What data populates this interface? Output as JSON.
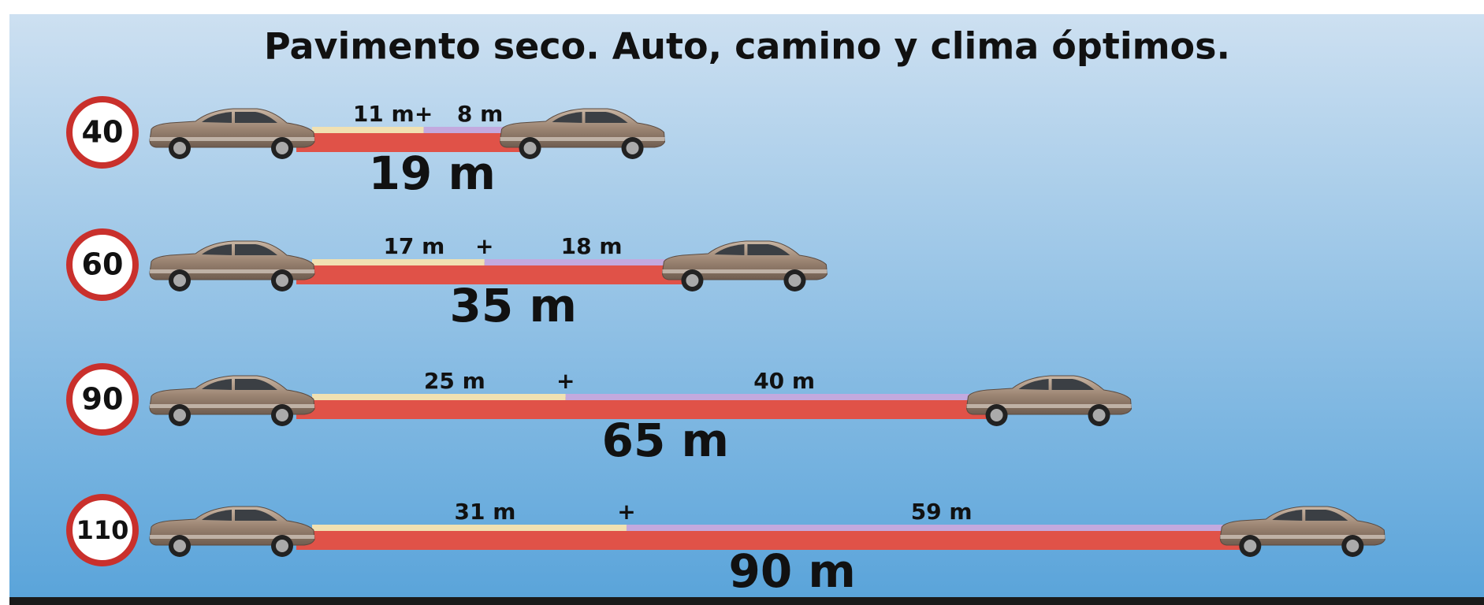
{
  "title": "Pavimento seco. Auto, camino y clima óptimos.",
  "separator": "+",
  "rows": [
    {
      "speed": 40,
      "reaction": {
        "value": 11,
        "label": "11 m"
      },
      "braking": {
        "value": 8,
        "label": "8 m"
      },
      "total": {
        "value": 19,
        "label": "19 m"
      }
    },
    {
      "speed": 60,
      "reaction": {
        "value": 17,
        "label": "17 m"
      },
      "braking": {
        "value": 18,
        "label": "18 m"
      },
      "total": {
        "value": 35,
        "label": "35 m"
      }
    },
    {
      "speed": 90,
      "reaction": {
        "value": 25,
        "label": "25 m"
      },
      "braking": {
        "value": 40,
        "label": "40 m"
      },
      "total": {
        "value": 65,
        "label": "65 m"
      }
    },
    {
      "speed": 110,
      "reaction": {
        "value": 31,
        "label": "31 m"
      },
      "braking": {
        "value": 59,
        "label": "59 m"
      },
      "total": {
        "value": 90,
        "label": "90 m"
      }
    }
  ]
}
